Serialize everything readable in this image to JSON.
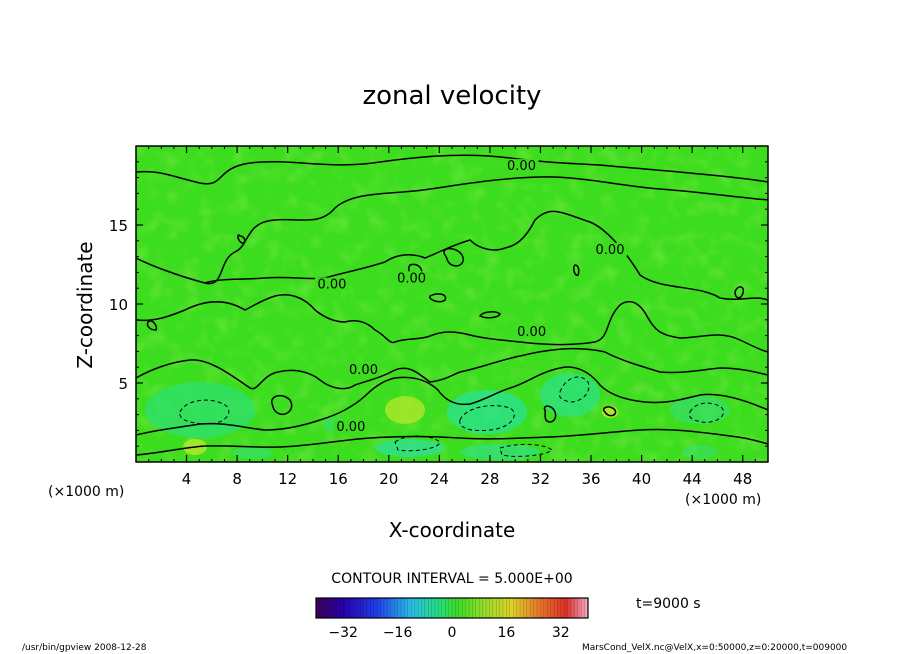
{
  "chart_data": {
    "type": "heatmap",
    "title": "zonal velocity",
    "xlabel": "X-coordinate",
    "ylabel": "Z-coordinate",
    "x_unit": "(×1000 m)",
    "y_unit": "(×1000 m)",
    "xlim": [
      0,
      50
    ],
    "ylim": [
      0,
      20
    ],
    "x_ticks": [
      4,
      8,
      12,
      16,
      20,
      24,
      28,
      32,
      36,
      40,
      44,
      48
    ],
    "y_ticks": [
      5,
      10,
      15
    ],
    "contour_interval_text": "CONTOUR INTERVAL = 5.000E+00",
    "contour_labels": [
      {
        "text": "0.00",
        "x": 30.5,
        "z": 18.6
      },
      {
        "text": "0.00",
        "x": 37.5,
        "z": 13.3
      },
      {
        "text": "0.00",
        "x": 15.5,
        "z": 11.1
      },
      {
        "text": "0.00",
        "x": 21.8,
        "z": 11.5
      },
      {
        "text": "0.00",
        "x": 31.3,
        "z": 8.1
      },
      {
        "text": "0.00",
        "x": 18.0,
        "z": 5.7
      },
      {
        "text": "0.00",
        "x": 17.0,
        "z": 2.1
      }
    ],
    "time_text": "t=9000 s",
    "colorbar": {
      "range": [
        -40,
        40
      ],
      "ticks": [
        -32,
        -16,
        0,
        16,
        32
      ]
    }
  },
  "footer": {
    "left": "/usr/bin/gpview   2008-12-28",
    "right": "MarsCond_VelX.nc@VelX,x=0:50000,z=0:20000,t=009000"
  }
}
